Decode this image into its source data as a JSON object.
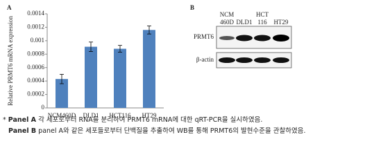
{
  "chart_data": {
    "type": "bar",
    "panel_label": "A",
    "y_label": "Relative PRMT6 mRNA expression",
    "categories": [
      "NCM460D",
      "DLD1",
      "HCT116",
      "HT29"
    ],
    "values": [
      0.00043,
      0.00091,
      0.00088,
      0.00116
    ],
    "errors": [
      7e-05,
      7e-05,
      5e-05,
      6e-05
    ],
    "color": "#4f81bd",
    "ylim": [
      0,
      0.0014
    ],
    "yticks": [
      0,
      0.0002,
      0.0004,
      0.0006,
      0.0008,
      0.001,
      0.0012,
      0.0014
    ]
  },
  "panel_b": {
    "panel_label": "B",
    "columns": [
      [
        "NCM",
        "460D"
      ],
      [
        "DLD1"
      ],
      [
        "HCT",
        "116"
      ],
      [
        "HT29"
      ]
    ],
    "rows": [
      "PRMT6",
      "β-actin"
    ]
  },
  "caption": [
    {
      "marker": "*",
      "label": "Panel A",
      "text": "각 세포로부터 RNA를 분리하여 PRMT6 mRNA에 대한 qRT-PCR을 실시하였음."
    },
    {
      "label": "Panel B",
      "text": "panel A와 같은 세포들로부터 단백질을 추출하여 WB를 통해 PRMT6의 발현수준을 관찰하였음."
    }
  ]
}
